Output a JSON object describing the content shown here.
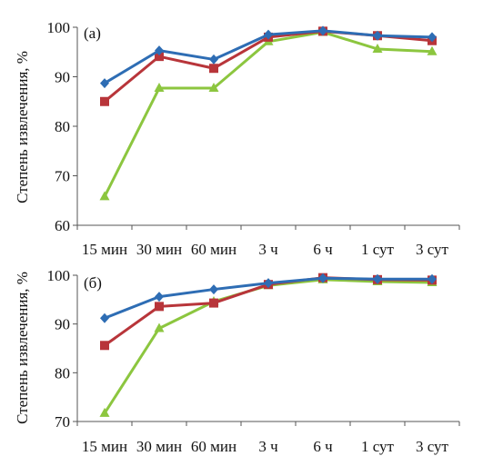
{
  "chart_data": [
    {
      "type": "line",
      "panel_label": "(a)",
      "ylabel": "Степень извлечения, %",
      "ylim": [
        60,
        100
      ],
      "yticks": [
        60,
        70,
        80,
        90,
        100
      ],
      "categories": [
        "15 мин",
        "30 мин",
        "60 мин",
        "3 ч",
        "6 ч",
        "1 сут",
        "3 сут"
      ],
      "grid": false,
      "series": [
        {
          "color": "#2e6db4",
          "marker": "diamond",
          "values": [
            88.7,
            95.3,
            93.5,
            98.5,
            99.3,
            98.3,
            98.0
          ]
        },
        {
          "color": "#b8353a",
          "marker": "square",
          "values": [
            85.0,
            94.1,
            91.7,
            98.0,
            99.2,
            98.3,
            97.3
          ]
        },
        {
          "color": "#8cc63f",
          "marker": "triangle",
          "values": [
            65.8,
            87.7,
            87.7,
            97.1,
            99.0,
            95.6,
            95.1
          ]
        }
      ]
    },
    {
      "type": "line",
      "panel_label": "(б)",
      "ylabel": "Степень извлечения, %",
      "ylim": [
        70,
        100
      ],
      "yticks": [
        70,
        80,
        90,
        100
      ],
      "categories": [
        "15 мин",
        "30 мин",
        "60 мин",
        "3 ч",
        "6 ч",
        "1 сут",
        "3 сут"
      ],
      "grid": false,
      "series": [
        {
          "color": "#2e6db4",
          "marker": "diamond",
          "values": [
            91.2,
            95.6,
            97.1,
            98.4,
            99.4,
            99.2,
            99.2
          ]
        },
        {
          "color": "#b8353a",
          "marker": "square",
          "values": [
            85.6,
            93.6,
            94.3,
            98.1,
            99.5,
            99.1,
            99.0
          ]
        },
        {
          "color": "#8cc63f",
          "marker": "triangle",
          "values": [
            71.7,
            89.1,
            94.6,
            97.9,
            99.1,
            98.7,
            98.5
          ]
        }
      ]
    }
  ]
}
